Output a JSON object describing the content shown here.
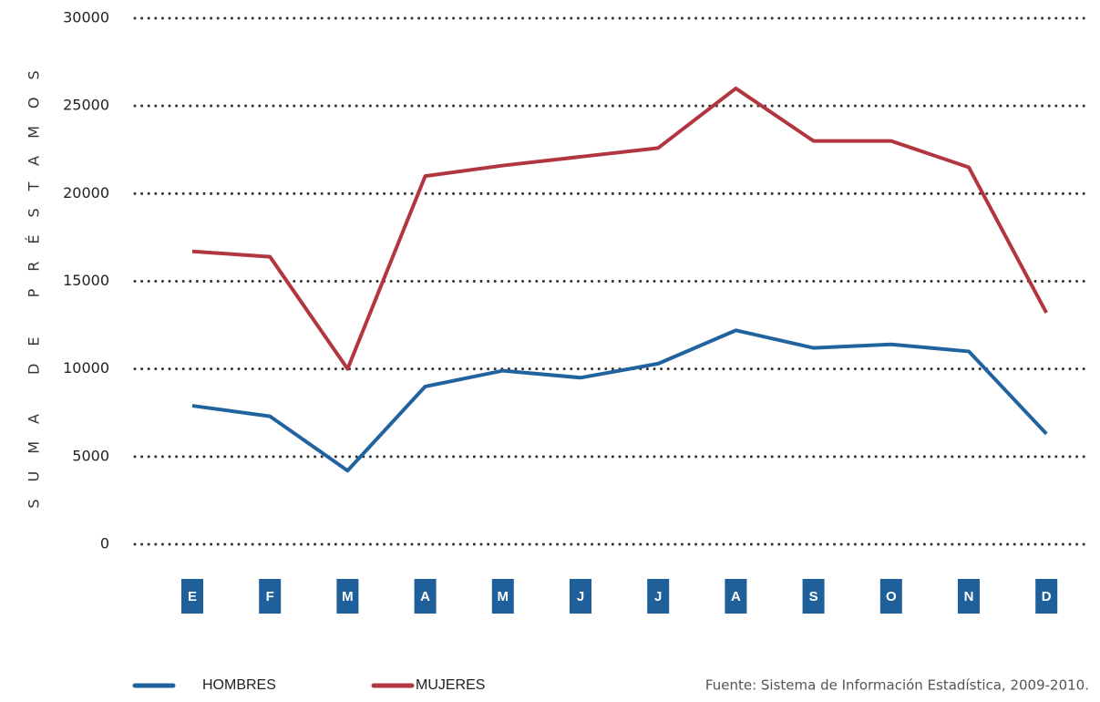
{
  "chart_data": {
    "type": "line",
    "y_label": "SUMA DE PRÉSTAMOS",
    "categories": [
      "E",
      "F",
      "M",
      "A",
      "M",
      "J",
      "J",
      "A",
      "S",
      "O",
      "N",
      "D"
    ],
    "series": [
      {
        "name": "HOMBRES",
        "color": "#21639e",
        "values": [
          7900,
          7300,
          4200,
          9000,
          9900,
          9500,
          10300,
          12200,
          11200,
          11400,
          11000,
          6300
        ]
      },
      {
        "name": "MUJERES",
        "color": "#b2363f",
        "values": [
          16700,
          16400,
          10000,
          21000,
          21600,
          22100,
          22600,
          26000,
          23000,
          23000,
          21500,
          13200
        ]
      }
    ],
    "ylim": [
      0,
      30000
    ],
    "yticks": [
      0,
      5000,
      10000,
      15000,
      20000,
      25000,
      30000
    ],
    "grid": true,
    "category_color": "#1f5f9a",
    "source": "Fuente: Sistema de Información Estadística, 2009-2010."
  }
}
